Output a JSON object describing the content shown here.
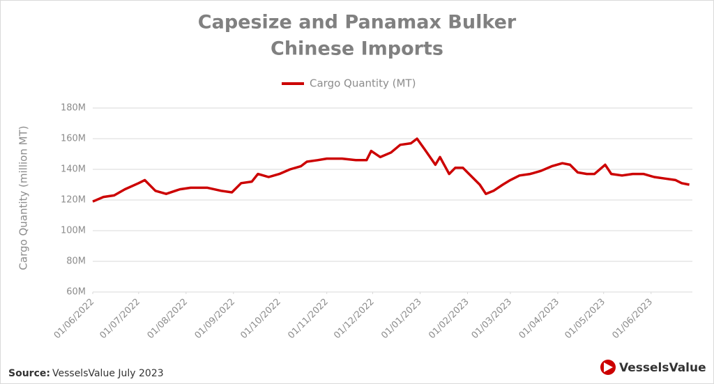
{
  "chart_data": {
    "type": "line",
    "title": [
      "Capesize and Panamax Bulker",
      "Chinese Imports"
    ],
    "y_label": "Cargo Quantity  (million MT)",
    "source_label": "Source:",
    "source_text": "VesselsValue July 2023",
    "brand": "VesselsValue",
    "legend": "top",
    "grid": true,
    "x": [
      "01/06/2022",
      "08/06/2022",
      "15/06/2022",
      "22/06/2022",
      "01/07/2022",
      "05/07/2022",
      "12/07/2022",
      "19/07/2022",
      "28/07/2022",
      "04/08/2022",
      "15/08/2022",
      "24/08/2022",
      "31/08/2022",
      "06/09/2022",
      "13/09/2022",
      "17/09/2022",
      "24/09/2022",
      "01/10/2022",
      "08/10/2022",
      "15/10/2022",
      "19/10/2022",
      "26/10/2022",
      "01/11/2022",
      "11/11/2022",
      "20/11/2022",
      "27/11/2022",
      "30/11/2022",
      "06/12/2022",
      "13/12/2022",
      "19/12/2022",
      "26/12/2022",
      "30/12/2022",
      "04/01/2023",
      "11/01/2023",
      "14/01/2023",
      "20/01/2023",
      "24/01/2023",
      "29/01/2023",
      "02/02/2023",
      "09/02/2023",
      "13/02/2023",
      "18/02/2023",
      "24/02/2023",
      "01/03/2023",
      "07/03/2023",
      "14/03/2023",
      "21/03/2023",
      "28/03/2023",
      "04/04/2023",
      "09/04/2023",
      "14/04/2023",
      "20/04/2023",
      "25/04/2023",
      "02/05/2023",
      "06/05/2023",
      "13/05/2023",
      "20/05/2023",
      "27/05/2023",
      "03/06/2023",
      "10/06/2023",
      "17/06/2023",
      "21/06/2023",
      "26/06/2023"
    ],
    "series": [
      {
        "name": "Cargo Quantity (MT)",
        "color": "#cc0000",
        "values": [
          119,
          122,
          123,
          127,
          131,
          133,
          126,
          124,
          127,
          128,
          128,
          126,
          125,
          131,
          132,
          137,
          135,
          137,
          140,
          142,
          145,
          146,
          147,
          147,
          146,
          146,
          152,
          148,
          151,
          156,
          157,
          160,
          153,
          143,
          148,
          137,
          141,
          141,
          137,
          130,
          124,
          126,
          130,
          133,
          136,
          137,
          139,
          142,
          144,
          143,
          138,
          137,
          137,
          143,
          137,
          136,
          137,
          137,
          135,
          134,
          133,
          131,
          130
        ]
      }
    ],
    "xlim": [
      "01/06/2022",
      "28/06/2023"
    ],
    "xticks": [
      "01/06/2022",
      "01/07/2022",
      "01/08/2022",
      "01/09/2022",
      "01/10/2022",
      "01/11/2022",
      "01/12/2022",
      "01/01/2023",
      "01/02/2023",
      "01/03/2023",
      "01/04/2023",
      "01/05/2023",
      "01/06/2023"
    ],
    "ylim": [
      60,
      180
    ],
    "yticks": [
      {
        "value": 60,
        "label": "60M"
      },
      {
        "value": 80,
        "label": "80M"
      },
      {
        "value": 100,
        "label": "100M"
      },
      {
        "value": 120,
        "label": "120M"
      },
      {
        "value": 140,
        "label": "140M"
      },
      {
        "value": 160,
        "label": "160M"
      },
      {
        "value": 180,
        "label": "180M"
      }
    ]
  }
}
